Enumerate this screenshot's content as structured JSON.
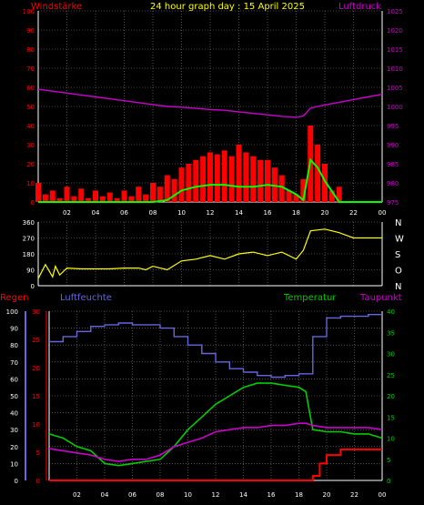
{
  "header": {
    "left": "Windstärke",
    "title": "24 hour graph day : 15 April 2025",
    "right": "Luftdruck"
  },
  "colors": {
    "wind": "#ff0000",
    "gust_fill": "#ff0000",
    "avg_line": "#00ff00",
    "calm_fill": "#ccffcc",
    "pressure": "#cc00cc",
    "direction": "#ffff00",
    "rain": "#ff0000",
    "humidity": "#6666dd",
    "temperature": "#00cc00",
    "dewpoint": "#cc00cc",
    "grid": "#888888",
    "axis_text": "#ffffff"
  },
  "chart_data": [
    {
      "type": "line",
      "title": "24 hour graph day : 15 April 2025",
      "x_ticks": [
        "02",
        "04",
        "06",
        "08",
        "10",
        "12",
        "14",
        "16",
        "18",
        "20",
        "22",
        "00"
      ],
      "xlim": [
        0,
        24
      ],
      "y_left_label": "Windstärke",
      "y_left_ticks": [
        0,
        10,
        20,
        30,
        40,
        50,
        60,
        70,
        80,
        90,
        100
      ],
      "y_left_lim": [
        0,
        100
      ],
      "y_right_label": "Luftdruck",
      "y_right_ticks": [
        975,
        980,
        985,
        990,
        995,
        1000,
        1005,
        1010,
        1015,
        1020,
        1025
      ],
      "y_right_lim": [
        975,
        1025
      ],
      "series": [
        {
          "name": "Luftdruck",
          "axis": "right",
          "x": [
            0,
            1,
            2,
            3,
            4,
            5,
            6,
            7,
            8,
            9,
            10,
            11,
            12,
            13,
            14,
            15,
            16,
            17,
            18,
            18.5,
            19,
            20,
            21,
            22,
            23,
            24
          ],
          "values": [
            1004.5,
            1004,
            1003.5,
            1003,
            1002.5,
            1002,
            1001.5,
            1001,
            1000.5,
            1000,
            999.8,
            999.5,
            999.2,
            999,
            998.6,
            998.2,
            997.8,
            997.4,
            997.2,
            997.5,
            999.6,
            1000.4,
            1001.1,
            1001.8,
            1002.5,
            1003.2
          ]
        },
        {
          "name": "Windböen",
          "axis": "left",
          "style": "bars",
          "x": [
            0,
            0.5,
            1,
            1.5,
            2,
            2.5,
            3,
            3.5,
            4,
            4.5,
            5,
            5.5,
            6,
            6.5,
            7,
            7.5,
            8,
            8.5,
            9,
            9.5,
            10,
            10.5,
            11,
            11.5,
            12,
            12.5,
            13,
            13.5,
            14,
            14.5,
            15,
            15.5,
            16,
            16.5,
            17,
            17.5,
            18,
            18.5,
            19,
            19.5,
            20,
            20.5,
            21,
            21.5,
            22,
            22.5,
            23,
            23.5,
            24
          ],
          "values": [
            10,
            4,
            6,
            2,
            8,
            3,
            7,
            2,
            6,
            3,
            5,
            2,
            6,
            3,
            8,
            4,
            10,
            8,
            14,
            12,
            18,
            20,
            22,
            24,
            26,
            25,
            27,
            24,
            30,
            26,
            24,
            22,
            22,
            18,
            14,
            6,
            4,
            12,
            40,
            30,
            20,
            6,
            8,
            0,
            0,
            0,
            0,
            0,
            0
          ]
        },
        {
          "name": "Windmittel",
          "axis": "left",
          "x": [
            0,
            1,
            2,
            3,
            4,
            5,
            6,
            7,
            8,
            9,
            10,
            11,
            12,
            13,
            14,
            15,
            16,
            17,
            18,
            18.5,
            19,
            19.5,
            20,
            21,
            22,
            23,
            24
          ],
          "values": [
            0,
            0,
            0,
            0,
            0,
            0,
            0,
            0,
            0,
            1,
            6,
            8,
            9,
            9,
            8,
            8,
            9,
            8,
            4,
            1,
            22,
            18,
            11,
            0,
            0,
            0,
            0
          ]
        }
      ]
    },
    {
      "type": "line",
      "x_ticks": [],
      "xlim": [
        0,
        24
      ],
      "y_left_ticks": [
        0,
        90,
        180,
        270,
        360
      ],
      "y_left_lim": [
        0,
        360
      ],
      "y_right_ticks": [
        "N",
        "W",
        "S",
        "O",
        "N"
      ],
      "series": [
        {
          "name": "Windrichtung",
          "x": [
            0,
            0.5,
            1,
            1.2,
            1.5,
            2,
            3,
            4,
            5,
            6,
            7,
            7.5,
            8,
            9,
            10,
            11,
            12,
            13,
            14,
            15,
            16,
            17,
            18,
            18.5,
            19,
            20,
            21,
            22,
            23,
            24
          ],
          "values": [
            40,
            120,
            50,
            110,
            60,
            100,
            95,
            95,
            95,
            100,
            100,
            90,
            110,
            90,
            140,
            150,
            170,
            150,
            180,
            190,
            170,
            190,
            150,
            200,
            310,
            320,
            300,
            270,
            270,
            270
          ]
        }
      ]
    },
    {
      "type": "line",
      "x_ticks": [
        "02",
        "04",
        "06",
        "08",
        "10",
        "12",
        "14",
        "16",
        "18",
        "20",
        "22",
        "00"
      ],
      "xlim": [
        0,
        24
      ],
      "legend": [
        "Regen",
        "Luftfeuchte",
        "Temperatur",
        "Taupunkt"
      ],
      "axis_humidity_ticks": [
        0,
        10,
        20,
        30,
        40,
        50,
        60,
        70,
        80,
        90,
        100
      ],
      "axis_rain_ticks": [
        0,
        5,
        10,
        15,
        20,
        25,
        30
      ],
      "axis_temp_ticks": [
        0,
        5,
        10,
        15,
        20,
        25,
        30,
        35,
        40
      ],
      "series": [
        {
          "name": "Luftfeuchte",
          "axis": "humidity",
          "x": [
            0,
            1,
            2,
            3,
            4,
            5,
            6,
            7,
            8,
            9,
            10,
            11,
            12,
            13,
            14,
            15,
            16,
            17,
            18,
            18.5,
            19,
            20,
            21,
            22,
            23,
            24
          ],
          "values": [
            82,
            85,
            88,
            91,
            92,
            93,
            92,
            92,
            90,
            85,
            80,
            75,
            70,
            66,
            64,
            62,
            61,
            62,
            63,
            63,
            85,
            96,
            97,
            97,
            98,
            98
          ]
        },
        {
          "name": "Temperatur",
          "axis": "temp",
          "x": [
            0,
            1,
            2,
            3,
            4,
            5,
            6,
            7,
            8,
            9,
            10,
            11,
            12,
            13,
            14,
            15,
            16,
            17,
            18,
            18.5,
            19,
            20,
            21,
            22,
            23,
            24
          ],
          "values": [
            11,
            10,
            8,
            7,
            4,
            3.5,
            4,
            4.5,
            5,
            8,
            12,
            15,
            18,
            20,
            22,
            23,
            23,
            22.5,
            22,
            21,
            12,
            11.5,
            11.5,
            11,
            11,
            10
          ]
        },
        {
          "name": "Taupunkt",
          "axis": "temp",
          "x": [
            0,
            1,
            2,
            3,
            4,
            5,
            6,
            7,
            8,
            9,
            10,
            11,
            12,
            13,
            14,
            15,
            16,
            17,
            18,
            18.5,
            19,
            20,
            21,
            22,
            23,
            24
          ],
          "values": [
            7.5,
            7,
            6.5,
            6,
            5,
            4.5,
            5,
            5,
            6,
            8,
            9,
            10,
            11.5,
            12,
            12.5,
            12.5,
            13,
            13,
            13.5,
            13.5,
            13,
            12.5,
            12.5,
            12.5,
            12.5,
            12
          ]
        },
        {
          "name": "Regen",
          "axis": "rain",
          "x": [
            0,
            18,
            18.6,
            19,
            19.5,
            20,
            20.5,
            21,
            22,
            23,
            24
          ],
          "values": [
            0,
            0,
            0,
            0.8,
            3,
            4.5,
            4.5,
            5.5,
            5.5,
            5.5,
            5.5
          ]
        }
      ]
    }
  ]
}
